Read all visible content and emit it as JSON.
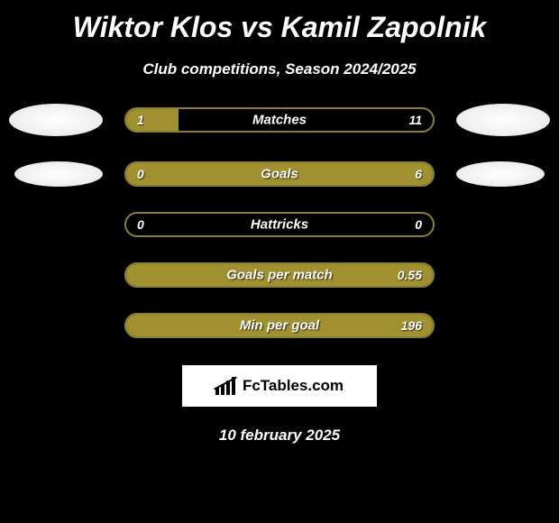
{
  "title": "Wiktor Klos vs Kamil Zapolnik",
  "subtitle": "Club competitions, Season 2024/2025",
  "stats": [
    {
      "label": "Matches",
      "left_value": "1",
      "right_value": "11",
      "left_pct": 17,
      "right_pct": 0,
      "show_left_avatar": true,
      "show_right_avatar": true,
      "avatar_small": false
    },
    {
      "label": "Goals",
      "left_value": "0",
      "right_value": "6",
      "left_pct": 0,
      "right_pct": 100,
      "show_left_avatar": true,
      "show_right_avatar": true,
      "avatar_small": true
    },
    {
      "label": "Hattricks",
      "left_value": "0",
      "right_value": "0",
      "left_pct": 0,
      "right_pct": 0,
      "show_left_avatar": false,
      "show_right_avatar": false,
      "avatar_small": false
    },
    {
      "label": "Goals per match",
      "left_value": "",
      "right_value": "0.55",
      "left_pct": 0,
      "right_pct": 100,
      "show_left_avatar": false,
      "show_right_avatar": false,
      "avatar_small": false
    },
    {
      "label": "Min per goal",
      "left_value": "",
      "right_value": "196",
      "left_pct": 0,
      "right_pct": 100,
      "show_left_avatar": false,
      "show_right_avatar": false,
      "avatar_small": false
    }
  ],
  "logo_text": "FcTables.com",
  "date": "10 february 2025",
  "colors": {
    "bar_fill": "#a09030",
    "bar_border": "#8a8030",
    "background": "#000000"
  }
}
